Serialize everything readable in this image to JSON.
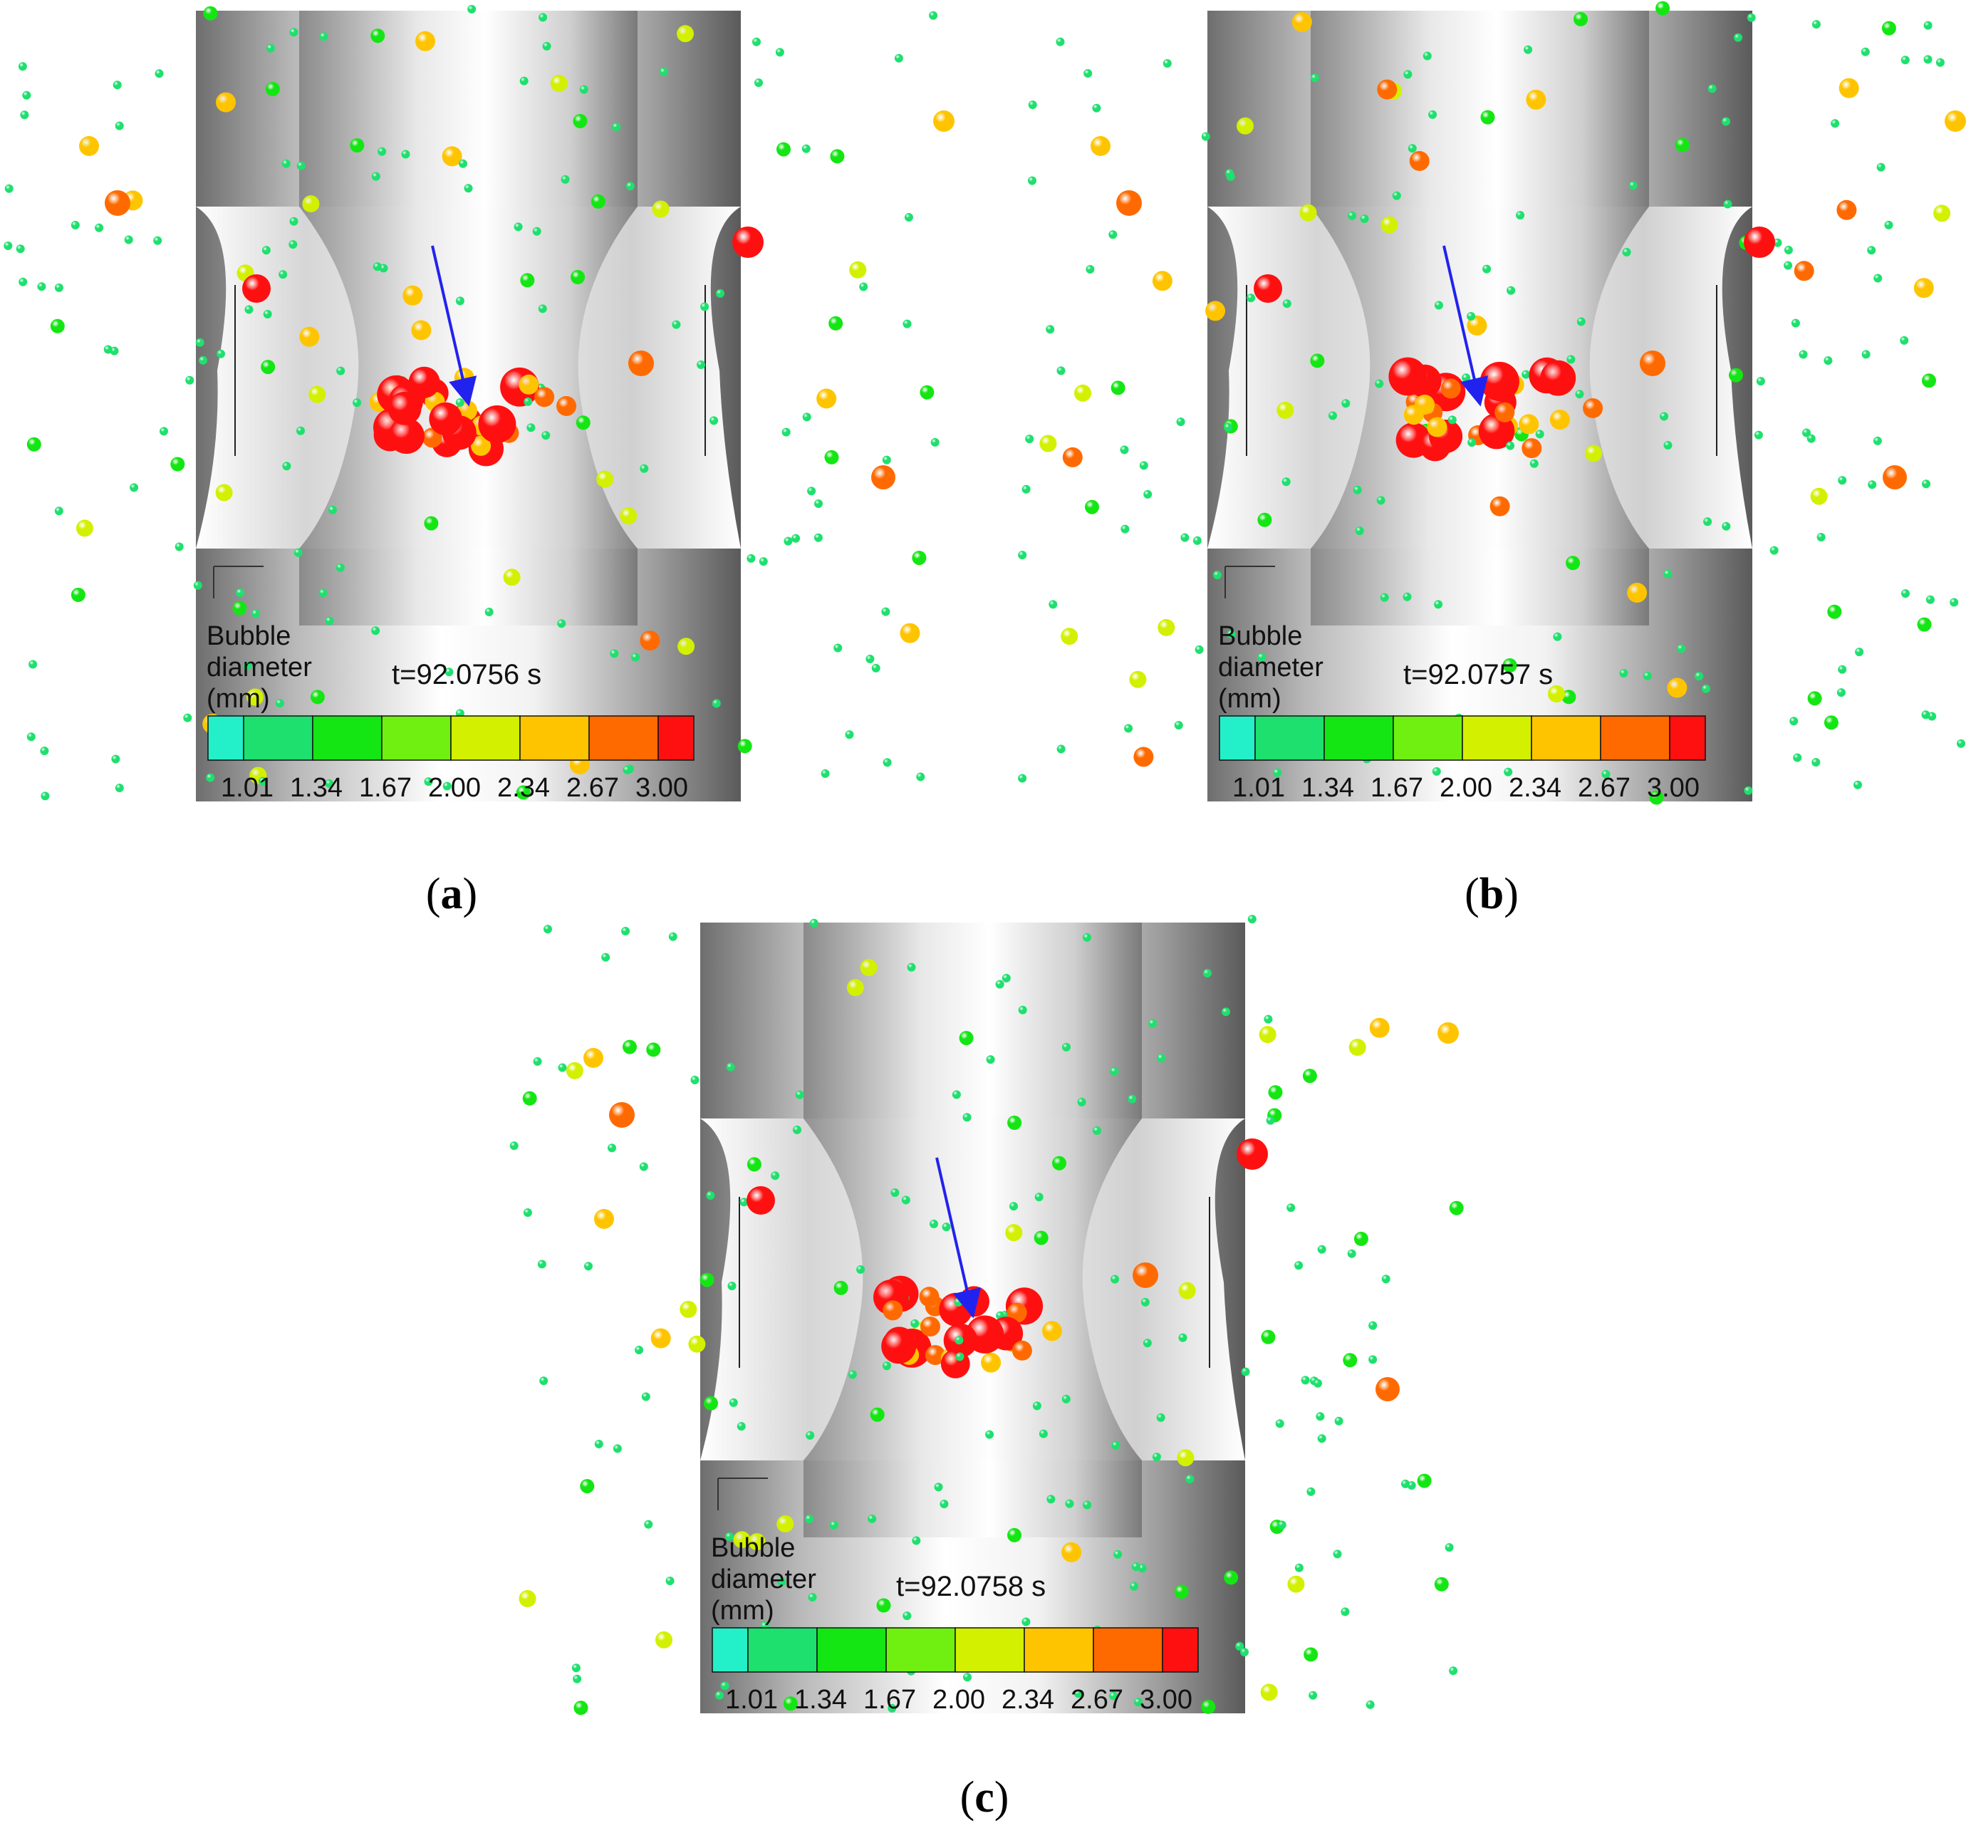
{
  "colors": {
    "bin1": "#23f0c8",
    "bin2": "#1ee06e",
    "bin3": "#14e614",
    "bin4": "#70f010",
    "bin5": "#d2f000",
    "bin6": "#ffc400",
    "bin7": "#ff6a00",
    "bin8": "#ff1010",
    "arrow": "#2222ee"
  },
  "legend": {
    "title_line1": "Bubble",
    "title_line2": "diameter",
    "title_line3": "(mm)",
    "ticks": [
      "1.01",
      "1.34",
      "1.67",
      "2.00",
      "2.34",
      "2.67",
      "3.00"
    ]
  },
  "panels": [
    {
      "label_open": "(",
      "label_letter": "a",
      "label_close": ")",
      "time": "t=92.0756 s"
    },
    {
      "label_open": "(",
      "label_letter": "b",
      "label_close": ")",
      "time": "t=92.0757 s"
    },
    {
      "label_open": "(",
      "label_letter": "c",
      "label_close": ")",
      "time": "t=92.0758 s"
    }
  ]
}
